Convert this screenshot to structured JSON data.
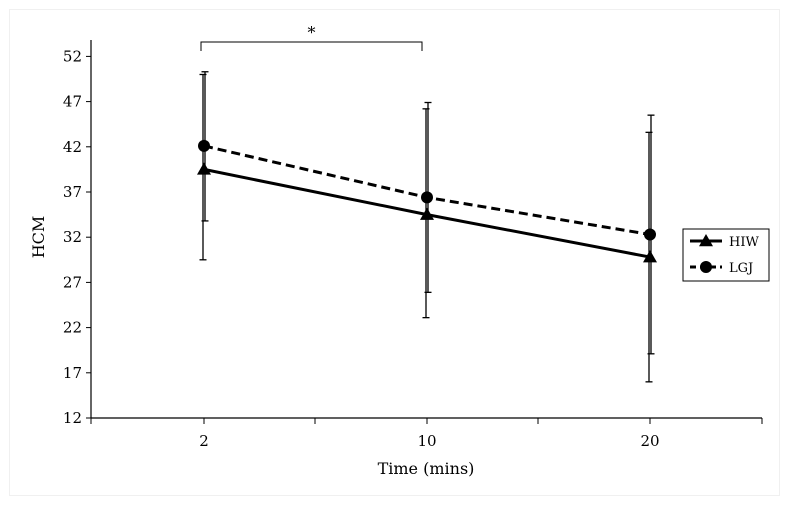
{
  "chart_data": {
    "type": "line",
    "title": "",
    "xlabel": "Time (mins)",
    "ylabel": "HCM",
    "categories": [
      "2",
      "10",
      "20"
    ],
    "ylim": [
      12,
      55
    ],
    "yticks": [
      "12",
      "17",
      "22",
      "27",
      "32",
      "37",
      "42",
      "47",
      "52"
    ],
    "grid": false,
    "legend_position": "right",
    "series": [
      {
        "name": "HIW",
        "values": [
          39.5,
          34.5,
          29.8
        ],
        "err_upper": [
          50.0,
          46.2,
          43.6
        ],
        "err_lower": [
          29.5,
          23.1,
          16.0
        ],
        "line_style": "solid",
        "marker": "triangle",
        "color": "#000000"
      },
      {
        "name": "LGJ",
        "values": [
          42.1,
          36.4,
          32.3
        ],
        "err_upper": [
          50.3,
          46.9,
          45.5
        ],
        "err_lower": [
          33.8,
          25.9,
          19.1
        ],
        "line_style": "dashed",
        "marker": "circle",
        "color": "#000000"
      }
    ],
    "annotations": [
      {
        "text": "*",
        "type": "significance-bracket",
        "from_category": "2",
        "to_category": "10"
      }
    ]
  }
}
